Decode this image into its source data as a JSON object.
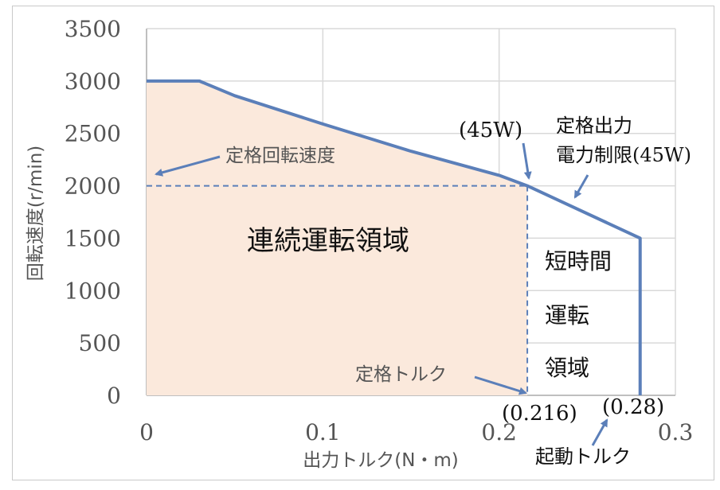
{
  "chart_data": {
    "type": "line",
    "xlabel": "出力トルク(N・m)",
    "ylabel": "回転速度(r/min)",
    "xlim": [
      0,
      0.3
    ],
    "ylim": [
      0,
      3500
    ],
    "x_ticks": [
      0,
      0.1,
      0.2,
      0.3
    ],
    "x_tick_labels": [
      "0",
      "0.1",
      "0.2",
      "0.3"
    ],
    "y_ticks": [
      0,
      500,
      1000,
      1500,
      2000,
      2500,
      3000,
      3500
    ],
    "y_tick_labels": [
      "0",
      "500",
      "1000",
      "1500",
      "2000",
      "2500",
      "3000",
      "3500"
    ],
    "grid": true,
    "series": [
      {
        "x": [
          0,
          0.03,
          0.05,
          0.1,
          0.15,
          0.2,
          0.216,
          0.28,
          0.28
        ],
        "y": [
          3000,
          3000,
          2860,
          2590,
          2330,
          2100,
          2000,
          1500,
          0
        ],
        "color": "#5b7fb9"
      }
    ],
    "continuous_region": {
      "x": [
        0,
        0.03,
        0.05,
        0.1,
        0.15,
        0.2,
        0.216,
        0.216,
        0
      ],
      "y": [
        3000,
        3000,
        2860,
        2590,
        2330,
        2100,
        2000,
        0,
        0
      ],
      "color": "#fbe9dc"
    },
    "rated_speed": 2000,
    "rated_torque": 0.216,
    "starting_torque": 0.28,
    "annotations": {
      "rated_speed": "定格回転速度",
      "continuous_region": "連続運転領域",
      "short_region": [
        "短時間",
        "運転",
        "領域"
      ],
      "rated_point": "(45W)",
      "power_limit_line1": "定格出力",
      "power_limit_line2": "電力制限(45W)",
      "rated_torque": "定格トルク",
      "rated_torque_value": "(0.216)",
      "starting_torque_value": "(0.28)",
      "starting_torque": "起動トルク"
    },
    "colors": {
      "curve": "#5b7fb9",
      "fill": "#fbe9dc",
      "grid": "#d9d9d9",
      "axis": "#bfbfbf"
    }
  }
}
